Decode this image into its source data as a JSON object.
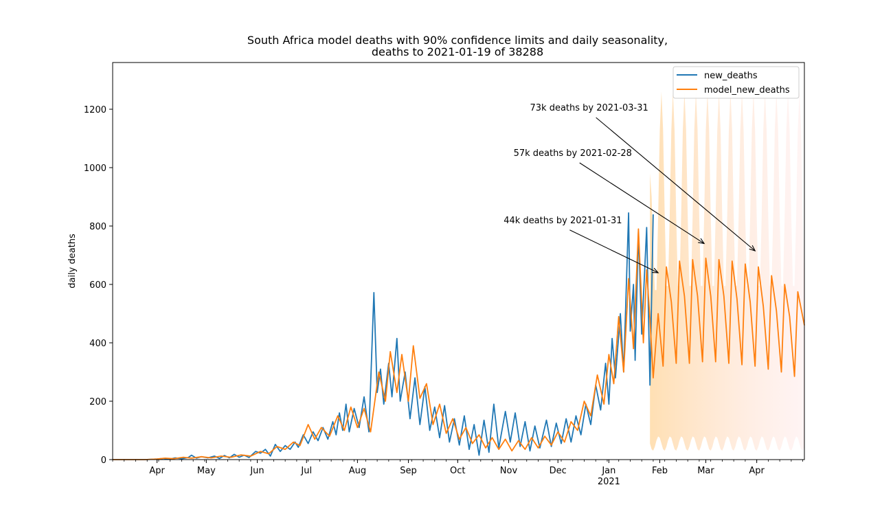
{
  "chart_data": {
    "type": "line",
    "title_line1": "South Africa model deaths with 90% confidence limits and daily seasonality,",
    "title_line2": "deaths to 2021-01-19 of 38288",
    "xlabel": "",
    "ylabel": "daily deaths",
    "ylim": [
      0,
      1360
    ],
    "xlim": [
      "2020-03-05",
      "2021-04-30"
    ],
    "y_ticks": [
      0,
      200,
      400,
      600,
      800,
      1000,
      1200
    ],
    "x_ticks": [
      {
        "date": "2020-04-01",
        "label": "Apr"
      },
      {
        "date": "2020-05-01",
        "label": "May"
      },
      {
        "date": "2020-06-01",
        "label": "Jun"
      },
      {
        "date": "2020-07-01",
        "label": "Jul"
      },
      {
        "date": "2020-08-01",
        "label": "Aug"
      },
      {
        "date": "2020-09-01",
        "label": "Sep"
      },
      {
        "date": "2020-10-01",
        "label": "Oct"
      },
      {
        "date": "2020-11-01",
        "label": "Nov"
      },
      {
        "date": "2020-12-01",
        "label": "Dec"
      },
      {
        "date": "2021-01-01",
        "label": "Jan"
      },
      {
        "date": "2021-02-01",
        "label": "Feb"
      },
      {
        "date": "2021-03-01",
        "label": "Mar"
      },
      {
        "date": "2021-04-01",
        "label": "Apr"
      }
    ],
    "x_year_label": {
      "date": "2021-01-01",
      "label": "2021"
    },
    "grid": false,
    "legend_position": "top-right",
    "series": [
      {
        "name": "new_deaths",
        "color": "#1f77b4",
        "points": [
          [
            "2020-03-05",
            0
          ],
          [
            "2020-03-25",
            0
          ],
          [
            "2020-04-01",
            2
          ],
          [
            "2020-04-05",
            4
          ],
          [
            "2020-04-08",
            1
          ],
          [
            "2020-04-12",
            6
          ],
          [
            "2020-04-16",
            3
          ],
          [
            "2020-04-20",
            7
          ],
          [
            "2020-04-22",
            15
          ],
          [
            "2020-04-25",
            5
          ],
          [
            "2020-04-28",
            10
          ],
          [
            "2020-05-02",
            6
          ],
          [
            "2020-05-06",
            12
          ],
          [
            "2020-05-09",
            4
          ],
          [
            "2020-05-12",
            14
          ],
          [
            "2020-05-15",
            6
          ],
          [
            "2020-05-18",
            18
          ],
          [
            "2020-05-21",
            8
          ],
          [
            "2020-05-24",
            15
          ],
          [
            "2020-05-27",
            7
          ],
          [
            "2020-05-31",
            28
          ],
          [
            "2020-06-03",
            22
          ],
          [
            "2020-06-06",
            35
          ],
          [
            "2020-06-09",
            12
          ],
          [
            "2020-06-12",
            52
          ],
          [
            "2020-06-15",
            28
          ],
          [
            "2020-06-18",
            48
          ],
          [
            "2020-06-21",
            35
          ],
          [
            "2020-06-24",
            60
          ],
          [
            "2020-06-26",
            42
          ],
          [
            "2020-06-29",
            85
          ],
          [
            "2020-07-02",
            55
          ],
          [
            "2020-07-05",
            95
          ],
          [
            "2020-07-08",
            65
          ],
          [
            "2020-07-11",
            110
          ],
          [
            "2020-07-14",
            70
          ],
          [
            "2020-07-17",
            130
          ],
          [
            "2020-07-19",
            85
          ],
          [
            "2020-07-21",
            160
          ],
          [
            "2020-07-23",
            100
          ],
          [
            "2020-07-25",
            190
          ],
          [
            "2020-07-27",
            95
          ],
          [
            "2020-07-30",
            175
          ],
          [
            "2020-08-02",
            110
          ],
          [
            "2020-08-05",
            215
          ],
          [
            "2020-08-08",
            95
          ],
          [
            "2020-08-11",
            572
          ],
          [
            "2020-08-13",
            230
          ],
          [
            "2020-08-15",
            310
          ],
          [
            "2020-08-17",
            190
          ],
          [
            "2020-08-20",
            330
          ],
          [
            "2020-08-22",
            215
          ],
          [
            "2020-08-25",
            415
          ],
          [
            "2020-08-27",
            200
          ],
          [
            "2020-08-30",
            300
          ],
          [
            "2020-09-02",
            140
          ],
          [
            "2020-09-05",
            280
          ],
          [
            "2020-09-08",
            120
          ],
          [
            "2020-09-11",
            250
          ],
          [
            "2020-09-14",
            100
          ],
          [
            "2020-09-17",
            180
          ],
          [
            "2020-09-20",
            75
          ],
          [
            "2020-09-23",
            185
          ],
          [
            "2020-09-26",
            60
          ],
          [
            "2020-09-29",
            140
          ],
          [
            "2020-10-02",
            50
          ],
          [
            "2020-10-05",
            150
          ],
          [
            "2020-10-08",
            35
          ],
          [
            "2020-10-11",
            120
          ],
          [
            "2020-10-14",
            15
          ],
          [
            "2020-10-17",
            135
          ],
          [
            "2020-10-20",
            25
          ],
          [
            "2020-10-23",
            190
          ],
          [
            "2020-10-26",
            40
          ],
          [
            "2020-10-30",
            165
          ],
          [
            "2020-11-02",
            60
          ],
          [
            "2020-11-05",
            160
          ],
          [
            "2020-11-08",
            45
          ],
          [
            "2020-11-11",
            130
          ],
          [
            "2020-11-14",
            30
          ],
          [
            "2020-11-17",
            115
          ],
          [
            "2020-11-20",
            40
          ],
          [
            "2020-11-24",
            135
          ],
          [
            "2020-11-27",
            45
          ],
          [
            "2020-11-30",
            125
          ],
          [
            "2020-12-03",
            55
          ],
          [
            "2020-12-06",
            140
          ],
          [
            "2020-12-09",
            60
          ],
          [
            "2020-12-12",
            150
          ],
          [
            "2020-12-15",
            85
          ],
          [
            "2020-12-18",
            190
          ],
          [
            "2020-12-21",
            120
          ],
          [
            "2020-12-24",
            255
          ],
          [
            "2020-12-27",
            170
          ],
          [
            "2020-12-30",
            330
          ],
          [
            "2021-01-01",
            190
          ],
          [
            "2021-01-03",
            415
          ],
          [
            "2021-01-05",
            280
          ],
          [
            "2021-01-08",
            500
          ],
          [
            "2021-01-10",
            300
          ],
          [
            "2021-01-13",
            845
          ],
          [
            "2021-01-14",
            440
          ],
          [
            "2021-01-16",
            600
          ],
          [
            "2021-01-17",
            340
          ],
          [
            "2021-01-19",
            780
          ],
          [
            "2021-01-21",
            430
          ],
          [
            "2021-01-24",
            795
          ],
          [
            "2021-01-26",
            255
          ],
          [
            "2021-01-28",
            840
          ]
        ]
      },
      {
        "name": "model_new_deaths",
        "color": "#ff7f0e",
        "points": [
          [
            "2020-03-05",
            0
          ],
          [
            "2020-03-25",
            0
          ],
          [
            "2020-04-01",
            2
          ],
          [
            "2020-04-06",
            5
          ],
          [
            "2020-04-11",
            3
          ],
          [
            "2020-04-17",
            8
          ],
          [
            "2020-04-22",
            5
          ],
          [
            "2020-04-28",
            10
          ],
          [
            "2020-05-04",
            6
          ],
          [
            "2020-05-10",
            12
          ],
          [
            "2020-05-16",
            8
          ],
          [
            "2020-05-22",
            16
          ],
          [
            "2020-05-28",
            12
          ],
          [
            "2020-06-03",
            28
          ],
          [
            "2020-06-08",
            20
          ],
          [
            "2020-06-13",
            45
          ],
          [
            "2020-06-18",
            35
          ],
          [
            "2020-06-23",
            60
          ],
          [
            "2020-06-27",
            48
          ],
          [
            "2020-07-02",
            120
          ],
          [
            "2020-07-06",
            70
          ],
          [
            "2020-07-10",
            110
          ],
          [
            "2020-07-15",
            80
          ],
          [
            "2020-07-20",
            150
          ],
          [
            "2020-07-24",
            100
          ],
          [
            "2020-07-28",
            180
          ],
          [
            "2020-08-01",
            110
          ],
          [
            "2020-08-05",
            175
          ],
          [
            "2020-08-09",
            95
          ],
          [
            "2020-08-14",
            300
          ],
          [
            "2020-08-18",
            200
          ],
          [
            "2020-08-21",
            370
          ],
          [
            "2020-08-25",
            230
          ],
          [
            "2020-08-28",
            360
          ],
          [
            "2020-09-01",
            200
          ],
          [
            "2020-09-04",
            390
          ],
          [
            "2020-09-08",
            210
          ],
          [
            "2020-09-12",
            260
          ],
          [
            "2020-09-16",
            120
          ],
          [
            "2020-09-20",
            190
          ],
          [
            "2020-09-24",
            90
          ],
          [
            "2020-09-28",
            140
          ],
          [
            "2020-10-02",
            70
          ],
          [
            "2020-10-06",
            110
          ],
          [
            "2020-10-10",
            55
          ],
          [
            "2020-10-14",
            85
          ],
          [
            "2020-10-18",
            40
          ],
          [
            "2020-10-22",
            75
          ],
          [
            "2020-10-26",
            35
          ],
          [
            "2020-10-30",
            70
          ],
          [
            "2020-11-03",
            30
          ],
          [
            "2020-11-07",
            65
          ],
          [
            "2020-11-11",
            35
          ],
          [
            "2020-11-15",
            75
          ],
          [
            "2020-11-19",
            40
          ],
          [
            "2020-11-23",
            80
          ],
          [
            "2020-11-27",
            50
          ],
          [
            "2020-12-01",
            95
          ],
          [
            "2020-12-05",
            60
          ],
          [
            "2020-12-09",
            130
          ],
          [
            "2020-12-13",
            100
          ],
          [
            "2020-12-17",
            200
          ],
          [
            "2020-12-21",
            150
          ],
          [
            "2020-12-25",
            290
          ],
          [
            "2020-12-29",
            190
          ],
          [
            "2021-01-01",
            360
          ],
          [
            "2021-01-04",
            260
          ],
          [
            "2021-01-07",
            490
          ],
          [
            "2021-01-10",
            300
          ],
          [
            "2021-01-13",
            620
          ],
          [
            "2021-01-16",
            380
          ],
          [
            "2021-01-19",
            790
          ],
          [
            "2021-01-22",
            400
          ],
          [
            "2021-01-24",
            650
          ],
          [
            "2021-01-26",
            480
          ],
          [
            "2021-01-28",
            280
          ],
          [
            "2021-01-31",
            500
          ],
          [
            "2021-02-03",
            320
          ],
          [
            "2021-02-05",
            660
          ],
          [
            "2021-02-08",
            540
          ],
          [
            "2021-02-11",
            330
          ],
          [
            "2021-02-13",
            680
          ],
          [
            "2021-02-16",
            560
          ],
          [
            "2021-02-19",
            330
          ],
          [
            "2021-02-21",
            685
          ],
          [
            "2021-02-24",
            560
          ],
          [
            "2021-02-27",
            335
          ],
          [
            "2021-03-01",
            690
          ],
          [
            "2021-03-04",
            560
          ],
          [
            "2021-03-07",
            335
          ],
          [
            "2021-03-09",
            685
          ],
          [
            "2021-03-12",
            560
          ],
          [
            "2021-03-15",
            330
          ],
          [
            "2021-03-17",
            680
          ],
          [
            "2021-03-20",
            550
          ],
          [
            "2021-03-23",
            325
          ],
          [
            "2021-03-25",
            670
          ],
          [
            "2021-03-28",
            540
          ],
          [
            "2021-03-31",
            320
          ],
          [
            "2021-04-02",
            660
          ],
          [
            "2021-04-05",
            525
          ],
          [
            "2021-04-08",
            310
          ],
          [
            "2021-04-10",
            630
          ],
          [
            "2021-04-13",
            510
          ],
          [
            "2021-04-16",
            300
          ],
          [
            "2021-04-18",
            600
          ],
          [
            "2021-04-21",
            490
          ],
          [
            "2021-04-24",
            285
          ],
          [
            "2021-04-26",
            575
          ],
          [
            "2021-04-30",
            460
          ]
        ]
      }
    ],
    "confidence_band": {
      "label": "90% confidence limits",
      "start": "2021-01-26",
      "end": "2021-04-30",
      "lower_base": 55,
      "upper_peaks": 1260,
      "color_start": "#ffd59a",
      "color_end": "#ffe0e0"
    },
    "annotations": [
      {
        "text": "44k deaths by 2021-01-31",
        "text_date": "2020-12-04",
        "text_value": 810,
        "target_date": "2021-01-31",
        "target_value": 640
      },
      {
        "text": "57k deaths by 2021-02-28",
        "text_date": "2020-12-10",
        "text_value": 1040,
        "target_date": "2021-02-28",
        "target_value": 740
      },
      {
        "text": "73k deaths by 2021-03-31",
        "text_date": "2020-12-20",
        "text_value": 1195,
        "target_date": "2021-03-31",
        "target_value": 715
      }
    ]
  }
}
